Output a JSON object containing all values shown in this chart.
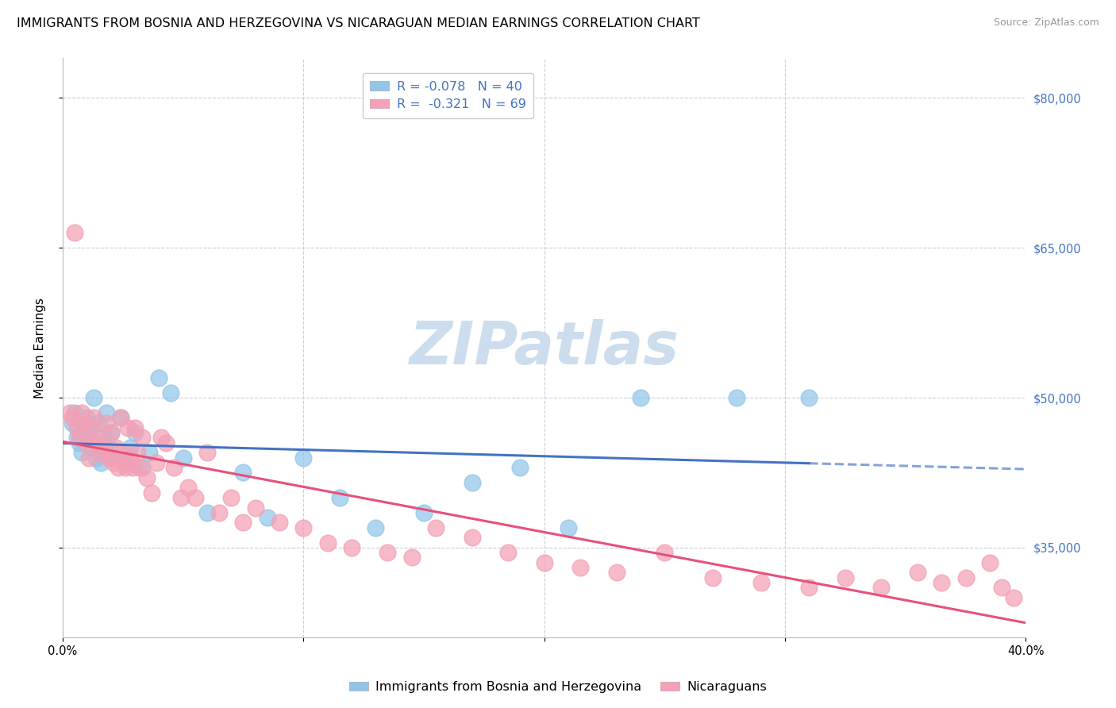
{
  "title": "IMMIGRANTS FROM BOSNIA AND HERZEGOVINA VS NICARAGUAN MEDIAN EARNINGS CORRELATION CHART",
  "source": "Source: ZipAtlas.com",
  "ylabel": "Median Earnings",
  "xlim": [
    0.0,
    0.4
  ],
  "ylim": [
    26000,
    84000
  ],
  "yticks": [
    35000,
    50000,
    65000,
    80000
  ],
  "xticks": [
    0.0,
    0.1,
    0.2,
    0.3,
    0.4
  ],
  "ytick_labels": [
    "$35,000",
    "$50,000",
    "$65,000",
    "$80,000"
  ],
  "blue_color": "#92c5e8",
  "pink_color": "#f4a0b5",
  "blue_line_color": "#4472c4",
  "pink_line_color": "#e8507a",
  "legend_blue_label": "R = -0.078   N = 40",
  "legend_pink_label": "R =  -0.321   N = 69",
  "legend_blue_scatter": "Immigrants from Bosnia and Herzegovina",
  "legend_pink_scatter": "Nicaraguans",
  "watermark_text": "ZIPatlas",
  "watermark_color": "#ccdded",
  "background_color": "#ffffff",
  "grid_color": "#ccccdd",
  "title_fontsize": 11.5,
  "axis_label_fontsize": 11,
  "tick_fontsize": 10.5,
  "blue_x": [
    0.004,
    0.005,
    0.006,
    0.007,
    0.008,
    0.009,
    0.01,
    0.011,
    0.012,
    0.013,
    0.014,
    0.015,
    0.016,
    0.017,
    0.018,
    0.019,
    0.02,
    0.022,
    0.024,
    0.026,
    0.028,
    0.03,
    0.033,
    0.036,
    0.04,
    0.045,
    0.05,
    0.06,
    0.075,
    0.085,
    0.1,
    0.115,
    0.13,
    0.15,
    0.17,
    0.19,
    0.21,
    0.24,
    0.28,
    0.31
  ],
  "blue_y": [
    47500,
    48500,
    46000,
    45500,
    44500,
    47000,
    48000,
    46500,
    45000,
    50000,
    44000,
    47500,
    43500,
    46000,
    48500,
    45000,
    46500,
    44000,
    48000,
    43500,
    45000,
    46500,
    43000,
    44500,
    52000,
    50500,
    44000,
    38500,
    42500,
    38000,
    44000,
    40000,
    37000,
    38500,
    41500,
    43000,
    37000,
    50000,
    50000,
    50000
  ],
  "pink_x": [
    0.003,
    0.004,
    0.005,
    0.006,
    0.007,
    0.008,
    0.009,
    0.01,
    0.011,
    0.012,
    0.013,
    0.014,
    0.015,
    0.016,
    0.017,
    0.018,
    0.019,
    0.02,
    0.021,
    0.022,
    0.023,
    0.024,
    0.025,
    0.026,
    0.027,
    0.028,
    0.029,
    0.03,
    0.031,
    0.032,
    0.033,
    0.035,
    0.037,
    0.039,
    0.041,
    0.043,
    0.046,
    0.049,
    0.052,
    0.055,
    0.06,
    0.065,
    0.07,
    0.075,
    0.08,
    0.09,
    0.1,
    0.11,
    0.12,
    0.135,
    0.145,
    0.155,
    0.17,
    0.185,
    0.2,
    0.215,
    0.23,
    0.25,
    0.27,
    0.29,
    0.31,
    0.325,
    0.34,
    0.355,
    0.365,
    0.375,
    0.385,
    0.39,
    0.395
  ],
  "pink_y": [
    48500,
    48000,
    66500,
    47000,
    46000,
    48500,
    47500,
    45500,
    44000,
    47000,
    48000,
    45500,
    46000,
    44500,
    45000,
    47500,
    44000,
    46500,
    43500,
    45000,
    43000,
    48000,
    44500,
    43000,
    47000,
    44000,
    43000,
    47000,
    44500,
    43000,
    46000,
    42000,
    40500,
    43500,
    46000,
    45500,
    43000,
    40000,
    41000,
    40000,
    44500,
    38500,
    40000,
    37500,
    39000,
    37500,
    37000,
    35500,
    35000,
    34500,
    34000,
    37000,
    36000,
    34500,
    33500,
    33000,
    32500,
    34500,
    32000,
    31500,
    31000,
    32000,
    31000,
    32500,
    31500,
    32000,
    33500,
    31000,
    30000
  ]
}
